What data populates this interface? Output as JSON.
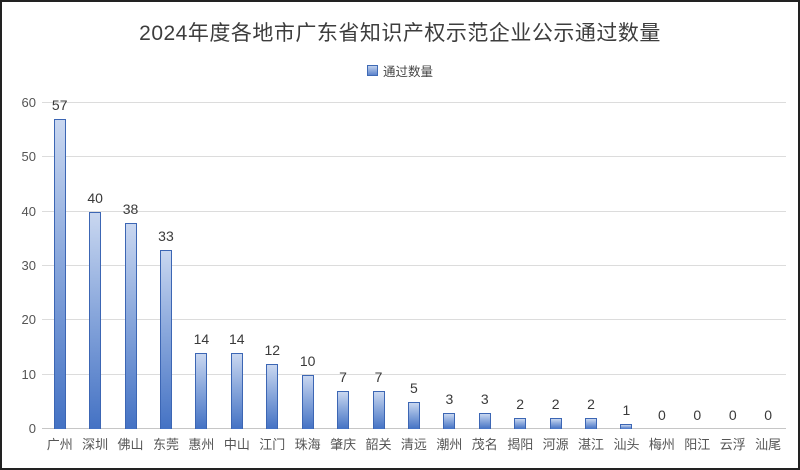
{
  "chart": {
    "title": "2024年度各地市广东省知识产权示范企业公示通过数量",
    "legend_label": "通过数量"
  },
  "chart_data": {
    "type": "bar",
    "title": "2024年度各地市广东省知识产权示范企业公示通过数量",
    "legend": [
      "通过数量"
    ],
    "legend_position": "top-center",
    "categories": [
      "广州",
      "深圳",
      "佛山",
      "东莞",
      "惠州",
      "中山",
      "江门",
      "珠海",
      "肇庆",
      "韶关",
      "清远",
      "潮州",
      "茂名",
      "揭阳",
      "河源",
      "湛江",
      "汕头",
      "梅州",
      "阳江",
      "云浮",
      "汕尾"
    ],
    "values": [
      57,
      40,
      38,
      33,
      14,
      14,
      12,
      10,
      7,
      7,
      5,
      3,
      3,
      2,
      2,
      2,
      1,
      0,
      0,
      0,
      0
    ],
    "xlabel": "",
    "ylabel": "",
    "ylim": [
      0,
      60
    ],
    "ytick_interval": 10,
    "grid": true,
    "data_labels": true,
    "colors": {
      "bar_gradient_top": "#c9d7f0",
      "bar_gradient_bottom": "#4472c4",
      "bar_border": "#3c66b4",
      "gridline": "#dcdcdc",
      "title_text": "#3d3d3d",
      "tick_text": "#555555",
      "value_text": "#3a3a3a"
    }
  }
}
